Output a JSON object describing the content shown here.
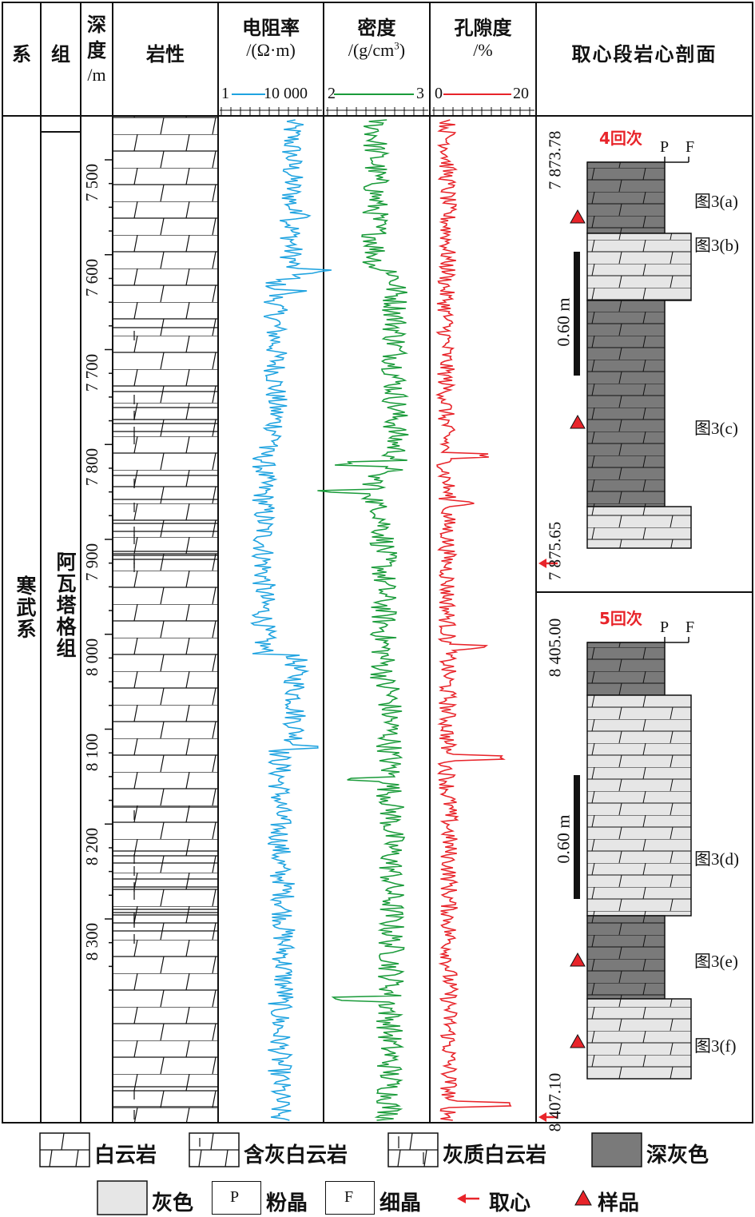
{
  "headers": {
    "system": "系",
    "group": "组",
    "depth": [
      "深",
      "度",
      "/m"
    ],
    "lithology": "岩性",
    "resistivity": {
      "title": "电阻率",
      "unit": "/(Ω·m)",
      "min": "1",
      "max": "10 000"
    },
    "density": {
      "title": "密度",
      "unit": "/(g/cm",
      "unit_sup": "3",
      "unit_end": ")",
      "min": "2",
      "max": "3"
    },
    "porosity": {
      "title": "孔隙度",
      "unit": "/%",
      "min": "0",
      "max": "20"
    },
    "core_profile": "取心段岩心剖面"
  },
  "strat": {
    "system": "寒武系",
    "group": "阿瓦塔格组"
  },
  "depth_ticks": [
    "7 500",
    "7 600",
    "7 700",
    "7 800",
    "7 900",
    "8 000",
    "8 100",
    "8 200",
    "8 300"
  ],
  "colors": {
    "resistivity": "#1fa3e0",
    "density": "#1a9b3a",
    "porosity": "#e8242a",
    "dark_gray": "#7a7a7a",
    "light_gray": "#e6e6e6",
    "red": "#e8242a"
  },
  "core4": {
    "round": "4回次",
    "top_depth": "7 873.78",
    "bottom_depth": "7 875.65",
    "scale": "0.60 m",
    "p": "P",
    "f": "F",
    "figs": [
      "图3(a)",
      "图3(b)",
      "图3(c)"
    ]
  },
  "core5": {
    "round": "5回次",
    "top_depth": "8 405.00",
    "bottom_depth": "8 407.10",
    "scale": "0.60 m",
    "p": "P",
    "f": "F",
    "figs": [
      "图3(d)",
      "图3(e)",
      "图3(f)"
    ]
  },
  "legend": {
    "dolomite": "白云岩",
    "lime_bearing": "含灰白云岩",
    "limy": "灰质白云岩",
    "dark_gray": "深灰色",
    "gray": "灰色",
    "p_letter": "P",
    "p_label": "粉晶",
    "f_letter": "F",
    "f_label": "细晶",
    "coring": "取心",
    "sample": "样品"
  }
}
